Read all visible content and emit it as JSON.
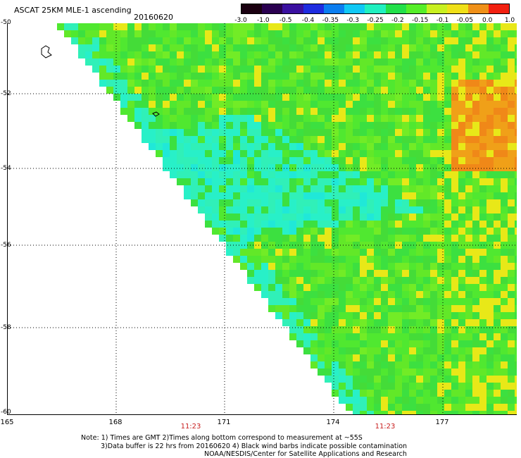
{
  "header": {
    "title": "ASCAT 25KM MLE-1 ascending",
    "date": "20160620"
  },
  "colorbar": {
    "labels": [
      "-3.0",
      "-1.0",
      "-0.5",
      "-0.4",
      "-0.35",
      "-0.3",
      "-0.25",
      "-0.2",
      "-0.15",
      "-0.1",
      "-0.05",
      "0.0",
      "1.0"
    ],
    "colors": [
      "#1a0010",
      "#2a0050",
      "#3a10a0",
      "#1e2ce0",
      "#0a7df0",
      "#10c8f5",
      "#20f0c0",
      "#22e04a",
      "#55ee28",
      "#c8f020",
      "#f0e018",
      "#f09018",
      "#f22010"
    ]
  },
  "map": {
    "lat_labels": [
      "-50",
      "-52",
      "-54",
      "-56",
      "-58",
      "-60"
    ],
    "lon_labels": [
      "165",
      "168",
      "171",
      "174",
      "177"
    ],
    "time_labels": [
      "11:23",
      "11:23"
    ],
    "background": "#ffffff",
    "gridline_color": "#000000"
  },
  "notes": {
    "line1": "Note: 1) Times are GMT 2)Times along bottom correspond to measurement at ~55S",
    "line2": "3)Data buffer is 22 hrs from 20160620 4) Black wind barbs indicate possible contamination",
    "line3": "NOAA/NESDIS/Center for Satellite Applications and Research"
  }
}
